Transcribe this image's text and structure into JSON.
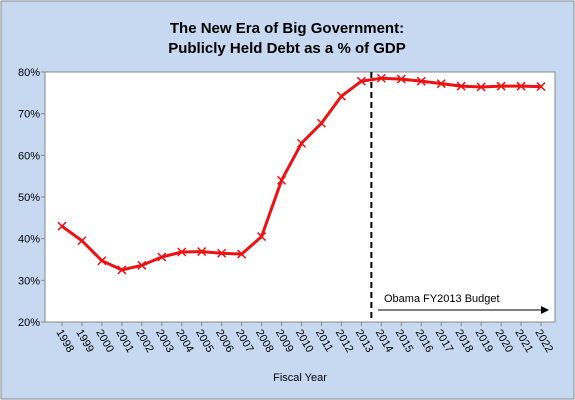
{
  "chart_data": {
    "type": "line",
    "title": [
      "The New Era of Big Government:",
      "Publicly Held Debt as a % of GDP"
    ],
    "x_label": "Fiscal Year",
    "annotation": "Obama FY2013 Budget",
    "categories": [
      "1998",
      "1999",
      "2000",
      "2001",
      "2002",
      "2003",
      "2004",
      "2005",
      "2006",
      "2007",
      "2008",
      "2009",
      "2010",
      "2011",
      "2012",
      "2013",
      "2014",
      "2015",
      "2016",
      "2017",
      "2018",
      "2019",
      "2020",
      "2021",
      "2022"
    ],
    "series": [
      {
        "name": "Publicly Held Debt as a % of GDP",
        "color": "#ee1111",
        "values": [
          43,
          39.5,
          34.7,
          32.5,
          33.6,
          35.6,
          36.8,
          36.9,
          36.5,
          36.3,
          40.5,
          54,
          62.9,
          67.7,
          74.2,
          77.8,
          78.5,
          78.3,
          77.8,
          77.2,
          76.6,
          76.4,
          76.6,
          76.6,
          76.5
        ]
      }
    ],
    "ylim": [
      20,
      80
    ],
    "yticks": [
      {
        "value": 20,
        "label": "20%"
      },
      {
        "value": 30,
        "label": "30%"
      },
      {
        "value": 40,
        "label": "40%"
      },
      {
        "value": 50,
        "label": "50%"
      },
      {
        "value": 60,
        "label": "60%"
      },
      {
        "value": 70,
        "label": "70%"
      },
      {
        "value": 80,
        "label": "80%"
      }
    ],
    "grid": false
  }
}
